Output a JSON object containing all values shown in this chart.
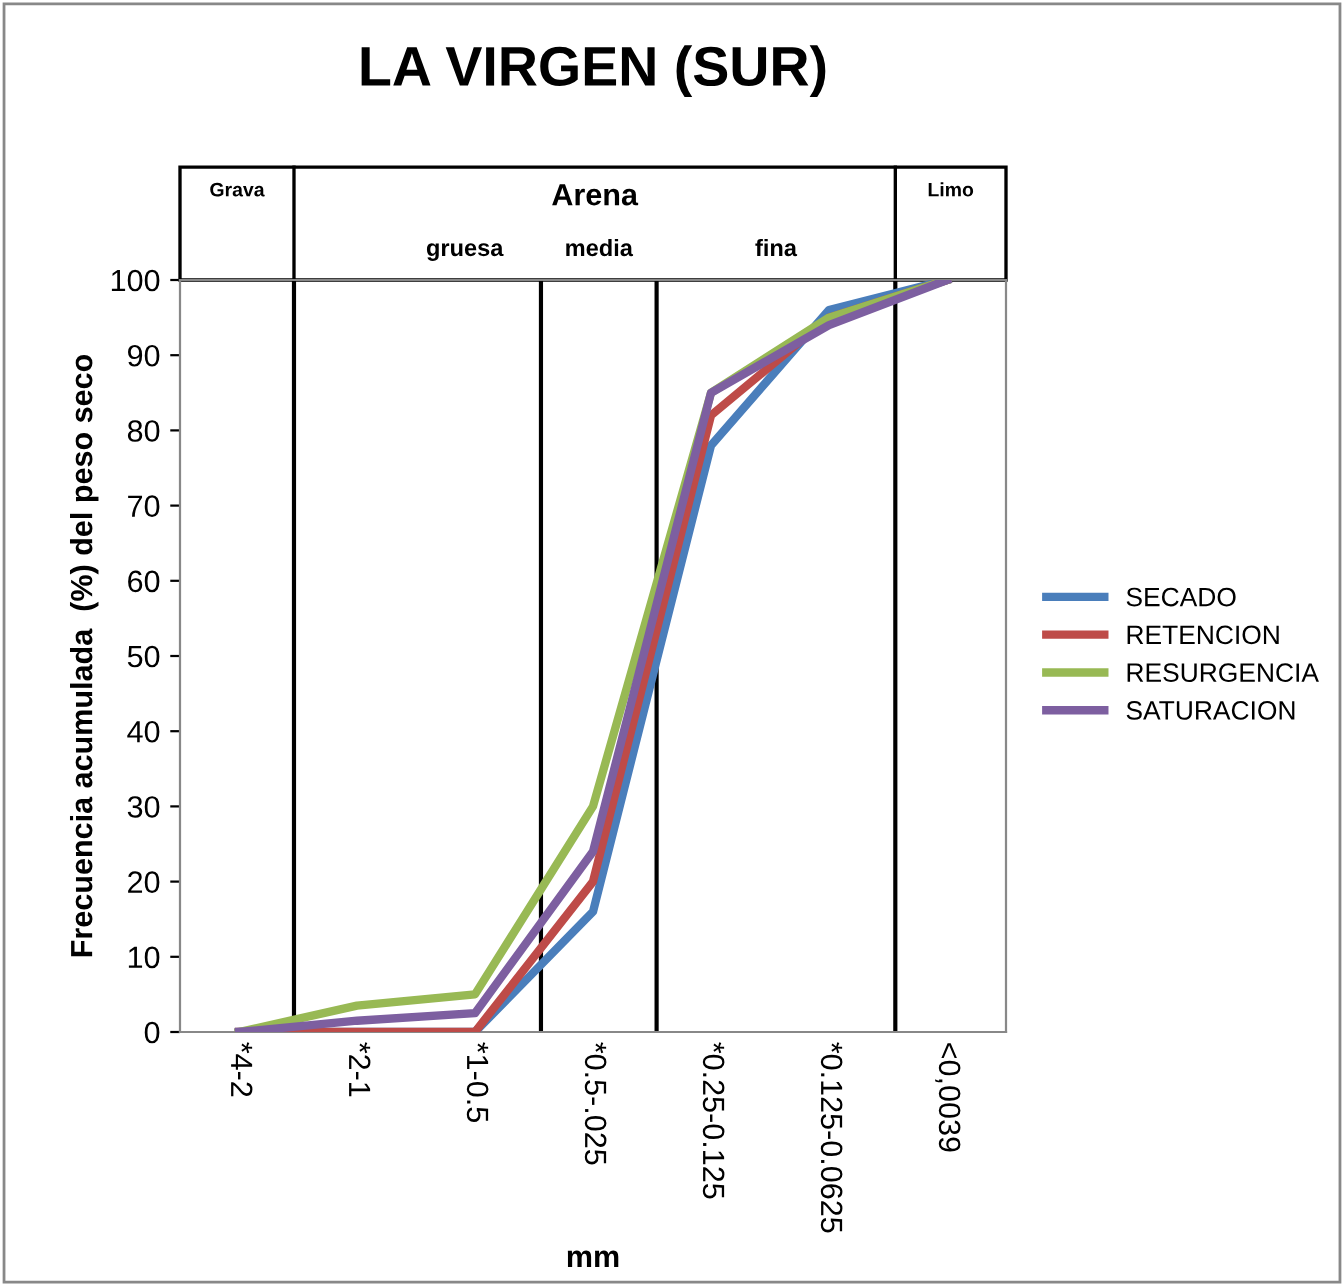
{
  "chart_data": {
    "type": "line",
    "title": "LA VIRGEN (SUR)",
    "xlabel": "mm",
    "ylabel": "Frecuencia acumulada  (%) del peso seco",
    "categories": [
      "*4-2",
      "*2-1",
      "*1-0.5",
      "*0.5-.025",
      "*0.25-0.125",
      "*0.125-0.0625",
      "<0,0039"
    ],
    "series": [
      {
        "name": "SECADO",
        "color": "#4a7ebb",
        "values": [
          0,
          0,
          0,
          16,
          78,
          96,
          100
        ]
      },
      {
        "name": "RETENCION",
        "color": "#be4b48",
        "values": [
          0,
          0,
          0,
          20,
          82,
          95,
          100
        ]
      },
      {
        "name": "RESURGENCIA",
        "color": "#98b954",
        "values": [
          0,
          3.5,
          5,
          30,
          85,
          95,
          100
        ]
      },
      {
        "name": "SATURACION",
        "color": "#7d5fa0",
        "values": [
          0,
          1.5,
          2.5,
          24,
          85,
          94,
          100
        ]
      }
    ],
    "ylim": [
      0,
      100
    ],
    "yticks": [
      0,
      10,
      20,
      30,
      40,
      50,
      60,
      70,
      80,
      90,
      100
    ],
    "annotations": [
      "Grava",
      "Arena",
      "gruesa",
      "media",
      "fina",
      "Limo"
    ],
    "grid": false,
    "legend": "right",
    "marker": "none",
    "line_style": "solid"
  }
}
